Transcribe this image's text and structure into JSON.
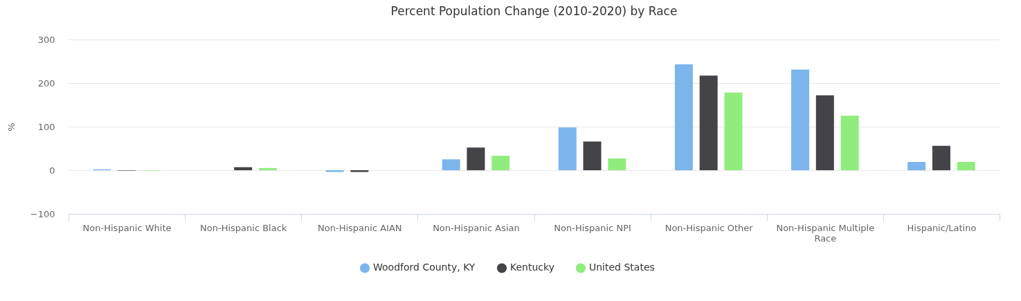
{
  "chart_data": {
    "type": "bar",
    "title": "Percent Population Change (2010-2020) by Race",
    "ylabel": "%",
    "categories": [
      "Non-Hispanic White",
      "Non-Hispanic Black",
      "Non-Hispanic AIAN",
      "Non-Hispanic Asian",
      "Non-Hispanic NPI",
      "Non-Hispanic Other",
      "Non-Hispanic Multiple Race",
      "Hispanic/Latino"
    ],
    "series": [
      {
        "name": "Woodford County, KY",
        "color": "#7cb5ec",
        "values": [
          2,
          0,
          -4,
          25,
          98,
          243,
          231,
          19
        ]
      },
      {
        "name": "Kentucky",
        "color": "#434348",
        "values": [
          -1,
          7,
          -4,
          52,
          66,
          217,
          172,
          56
        ]
      },
      {
        "name": "United States",
        "color": "#90ed7d",
        "values": [
          -1,
          5,
          0,
          33,
          27,
          178,
          125,
          19
        ]
      }
    ],
    "ylim": [
      -100,
      300
    ],
    "yticks": [
      -100,
      0,
      100,
      200,
      300
    ],
    "grid": "y",
    "legend": "bottom"
  }
}
